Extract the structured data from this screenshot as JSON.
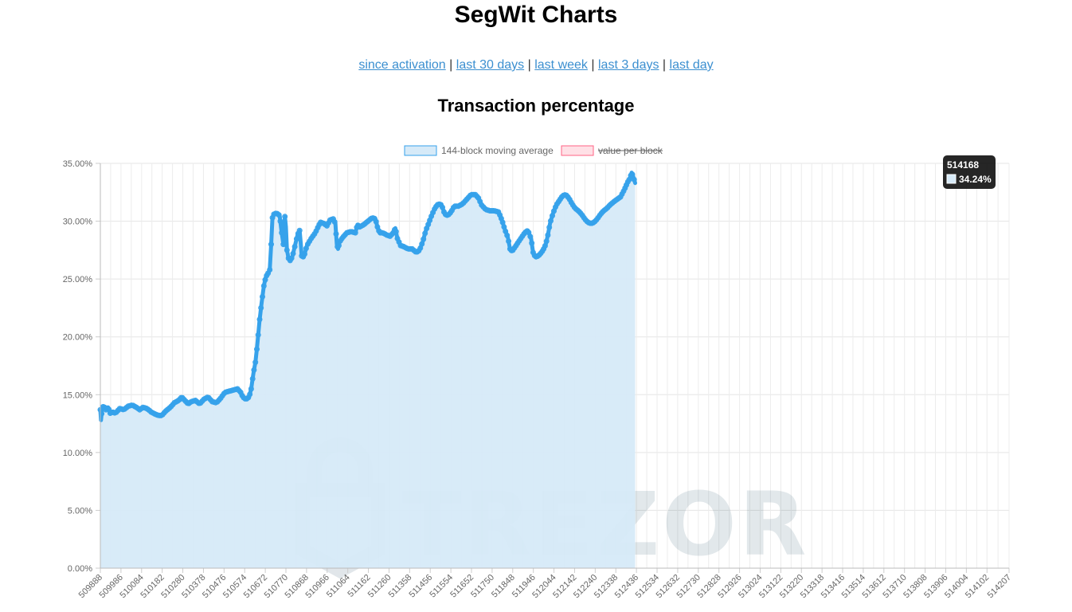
{
  "page": {
    "title": "SegWit Charts",
    "nav": [
      {
        "label": "since activation"
      },
      {
        "label": "last 30 days"
      },
      {
        "label": "last week"
      },
      {
        "label": "last 3 days"
      },
      {
        "label": "last day"
      }
    ],
    "nav_separator": "|"
  },
  "watermark": {
    "text": "TREZOR"
  },
  "chart_data": {
    "type": "area",
    "title": "Transaction percentage",
    "xlabel": "",
    "ylabel": "",
    "ylim": [
      0,
      35
    ],
    "y_ticks": [
      "0.00%",
      "5.00%",
      "10.00%",
      "15.00%",
      "20.00%",
      "25.00%",
      "30.00%",
      "35.00%"
    ],
    "x_ticks": [
      "509888",
      "509986",
      "510084",
      "510182",
      "510280",
      "510378",
      "510476",
      "510574",
      "510672",
      "510770",
      "510868",
      "510966",
      "511064",
      "511162",
      "511260",
      "511358",
      "511456",
      "511554",
      "511652",
      "511750",
      "511848",
      "511946",
      "512044",
      "512142",
      "512240",
      "512338",
      "512436",
      "512534",
      "512632",
      "512730",
      "512828",
      "512926",
      "513024",
      "513122",
      "513220",
      "513318",
      "513416",
      "513514",
      "513612",
      "513710",
      "513808",
      "513906",
      "514004",
      "514102",
      "514207"
    ],
    "grid": true,
    "legend_position": "top",
    "series": [
      {
        "name": "144-block moving average",
        "color": "#36a2eb",
        "fill": "#d6eaf8",
        "hidden": false,
        "points": [
          [
            509888,
            13.7
          ],
          [
            509891,
            12.8
          ],
          [
            509897,
            13.9
          ],
          [
            509905,
            14.0
          ],
          [
            509915,
            13.7
          ],
          [
            509925,
            13.9
          ],
          [
            509935,
            13.4
          ],
          [
            509945,
            13.5
          ],
          [
            509960,
            13.4
          ],
          [
            509980,
            13.8
          ],
          [
            510000,
            13.7
          ],
          [
            510020,
            14.0
          ],
          [
            510040,
            14.1
          ],
          [
            510060,
            13.9
          ],
          [
            510075,
            13.7
          ],
          [
            510090,
            13.9
          ],
          [
            510110,
            13.8
          ],
          [
            510130,
            13.5
          ],
          [
            510150,
            13.3
          ],
          [
            510165,
            13.2
          ],
          [
            510180,
            13.2
          ],
          [
            510200,
            13.6
          ],
          [
            510220,
            13.9
          ],
          [
            510240,
            14.3
          ],
          [
            510260,
            14.5
          ],
          [
            510275,
            14.8
          ],
          [
            510290,
            14.5
          ],
          [
            510305,
            14.2
          ],
          [
            510320,
            14.4
          ],
          [
            510340,
            14.5
          ],
          [
            510360,
            14.2
          ],
          [
            510380,
            14.6
          ],
          [
            510400,
            14.8
          ],
          [
            510420,
            14.4
          ],
          [
            510440,
            14.3
          ],
          [
            510460,
            14.7
          ],
          [
            510480,
            15.2
          ],
          [
            510500,
            15.3
          ],
          [
            510520,
            15.4
          ],
          [
            510540,
            15.5
          ],
          [
            510555,
            15.2
          ],
          [
            510565,
            14.8
          ],
          [
            510580,
            14.6
          ],
          [
            510595,
            14.8
          ],
          [
            510605,
            15.5
          ],
          [
            510615,
            16.8
          ],
          [
            510625,
            17.8
          ],
          [
            510635,
            19.5
          ],
          [
            510645,
            21.5
          ],
          [
            510655,
            23.0
          ],
          [
            510665,
            24.4
          ],
          [
            510675,
            25.2
          ],
          [
            510685,
            25.5
          ],
          [
            510693,
            25.8
          ],
          [
            510700,
            28.0
          ],
          [
            510706,
            30.3
          ],
          [
            510713,
            30.6
          ],
          [
            510725,
            30.7
          ],
          [
            510740,
            30.5
          ],
          [
            510750,
            29.0
          ],
          [
            510758,
            28.0
          ],
          [
            510765,
            30.4
          ],
          [
            510770,
            29.5
          ],
          [
            510775,
            27.5
          ],
          [
            510782,
            26.8
          ],
          [
            510790,
            26.6
          ],
          [
            510800,
            26.9
          ],
          [
            510812,
            27.8
          ],
          [
            510825,
            28.8
          ],
          [
            510835,
            29.2
          ],
          [
            510840,
            28.2
          ],
          [
            510845,
            27.0
          ],
          [
            510855,
            26.9
          ],
          [
            510870,
            27.9
          ],
          [
            510890,
            28.5
          ],
          [
            510910,
            29.0
          ],
          [
            510925,
            29.6
          ],
          [
            510935,
            29.9
          ],
          [
            510950,
            29.8
          ],
          [
            510965,
            29.6
          ],
          [
            510980,
            30.1
          ],
          [
            510995,
            30.2
          ],
          [
            511005,
            29.8
          ],
          [
            511012,
            28.0
          ],
          [
            511018,
            27.6
          ],
          [
            511025,
            28.2
          ],
          [
            511040,
            28.6
          ],
          [
            511060,
            29.0
          ],
          [
            511080,
            29.1
          ],
          [
            511100,
            29.0
          ],
          [
            511110,
            29.7
          ],
          [
            511120,
            29.5
          ],
          [
            511140,
            29.7
          ],
          [
            511160,
            30.0
          ],
          [
            511180,
            30.3
          ],
          [
            511195,
            30.2
          ],
          [
            511205,
            29.5
          ],
          [
            511215,
            29.0
          ],
          [
            511230,
            29.0
          ],
          [
            511250,
            28.8
          ],
          [
            511265,
            28.7
          ],
          [
            511280,
            29.0
          ],
          [
            511290,
            29.4
          ],
          [
            511300,
            28.5
          ],
          [
            511315,
            27.9
          ],
          [
            511330,
            27.8
          ],
          [
            511350,
            27.6
          ],
          [
            511370,
            27.6
          ],
          [
            511390,
            27.3
          ],
          [
            511405,
            27.5
          ],
          [
            511420,
            28.2
          ],
          [
            511435,
            29.2
          ],
          [
            511450,
            29.9
          ],
          [
            511465,
            30.6
          ],
          [
            511480,
            31.2
          ],
          [
            511495,
            31.5
          ],
          [
            511510,
            31.4
          ],
          [
            511525,
            30.6
          ],
          [
            511540,
            30.5
          ],
          [
            511555,
            30.8
          ],
          [
            511570,
            31.3
          ],
          [
            511590,
            31.3
          ],
          [
            511610,
            31.5
          ],
          [
            511630,
            31.9
          ],
          [
            511650,
            32.3
          ],
          [
            511670,
            32.3
          ],
          [
            511685,
            32.0
          ],
          [
            511700,
            31.4
          ],
          [
            511720,
            31.0
          ],
          [
            511740,
            30.9
          ],
          [
            511760,
            30.9
          ],
          [
            511780,
            30.8
          ],
          [
            511790,
            30.4
          ],
          [
            511800,
            29.9
          ],
          [
            511810,
            29.3
          ],
          [
            511825,
            28.6
          ],
          [
            511835,
            27.6
          ],
          [
            511845,
            27.4
          ],
          [
            511860,
            27.8
          ],
          [
            511875,
            28.2
          ],
          [
            511890,
            28.6
          ],
          [
            511905,
            29.0
          ],
          [
            511920,
            29.2
          ],
          [
            511935,
            28.5
          ],
          [
            511945,
            27.3
          ],
          [
            511955,
            26.9
          ],
          [
            511970,
            27.0
          ],
          [
            511985,
            27.3
          ],
          [
            511995,
            27.6
          ],
          [
            512005,
            28.0
          ],
          [
            512015,
            28.8
          ],
          [
            512025,
            29.8
          ],
          [
            512040,
            30.7
          ],
          [
            512055,
            31.4
          ],
          [
            512070,
            31.8
          ],
          [
            512085,
            32.2
          ],
          [
            512100,
            32.3
          ],
          [
            512115,
            32.0
          ],
          [
            512130,
            31.5
          ],
          [
            512145,
            31.1
          ],
          [
            512160,
            30.9
          ],
          [
            512175,
            30.6
          ],
          [
            512190,
            30.2
          ],
          [
            512205,
            29.9
          ],
          [
            512220,
            29.8
          ],
          [
            512235,
            29.9
          ],
          [
            512250,
            30.2
          ],
          [
            512265,
            30.6
          ],
          [
            512280,
            30.9
          ],
          [
            512295,
            31.1
          ],
          [
            512310,
            31.4
          ],
          [
            512330,
            31.7
          ],
          [
            512345,
            31.9
          ],
          [
            512360,
            32.1
          ],
          [
            512375,
            32.6
          ],
          [
            512385,
            33.0
          ],
          [
            512395,
            33.4
          ],
          [
            512405,
            33.7
          ],
          [
            512413,
            34.2
          ],
          [
            512420,
            33.9
          ],
          [
            512425,
            33.6
          ],
          [
            512430,
            33.3
          ]
        ]
      },
      {
        "name": "value per block",
        "color": "#ff6384",
        "fill": "#ffe0e6",
        "hidden": true,
        "points": []
      }
    ],
    "tooltip": {
      "title": "514168",
      "value": "34.24%"
    }
  }
}
